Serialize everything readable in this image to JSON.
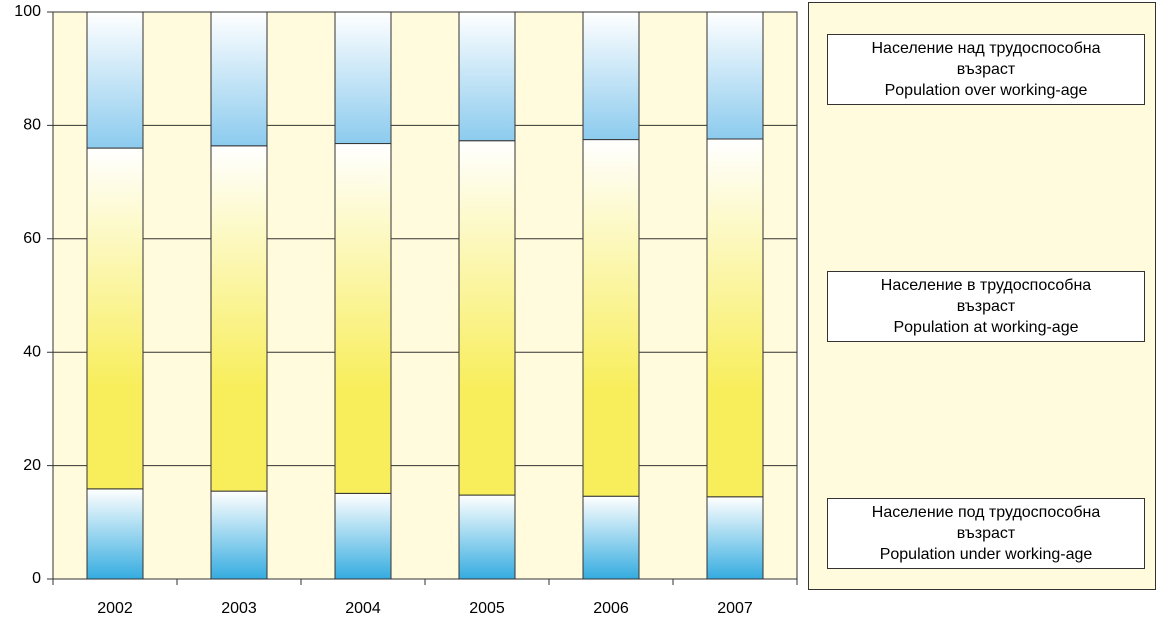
{
  "chart_data": {
    "type": "stacked_bar",
    "categories": [
      "2002",
      "2003",
      "2004",
      "2005",
      "2006",
      "2007"
    ],
    "series": [
      {
        "name": "Население под трудоспособна\nвъзраст\nPopulation under working-age",
        "color": "#35ace0",
        "values": [
          15.9,
          15.5,
          15.1,
          14.8,
          14.6,
          14.5
        ]
      },
      {
        "name": "Население в трудоспособна\nвъзраст\nPopulation at working-age",
        "color": "#f8ee5c",
        "values": [
          60.1,
          60.9,
          61.7,
          62.5,
          62.9,
          63.1
        ]
      },
      {
        "name": "Население над трудоспособна\nвъзраст\nPopulation over working-age",
        "color": "#8ccbee",
        "values": [
          24.0,
          23.6,
          23.2,
          22.7,
          22.5,
          22.4
        ]
      }
    ],
    "ylim": [
      0,
      100
    ],
    "yticks": [
      0,
      20,
      40,
      60,
      80,
      100
    ],
    "grid": true,
    "legend": "right"
  }
}
